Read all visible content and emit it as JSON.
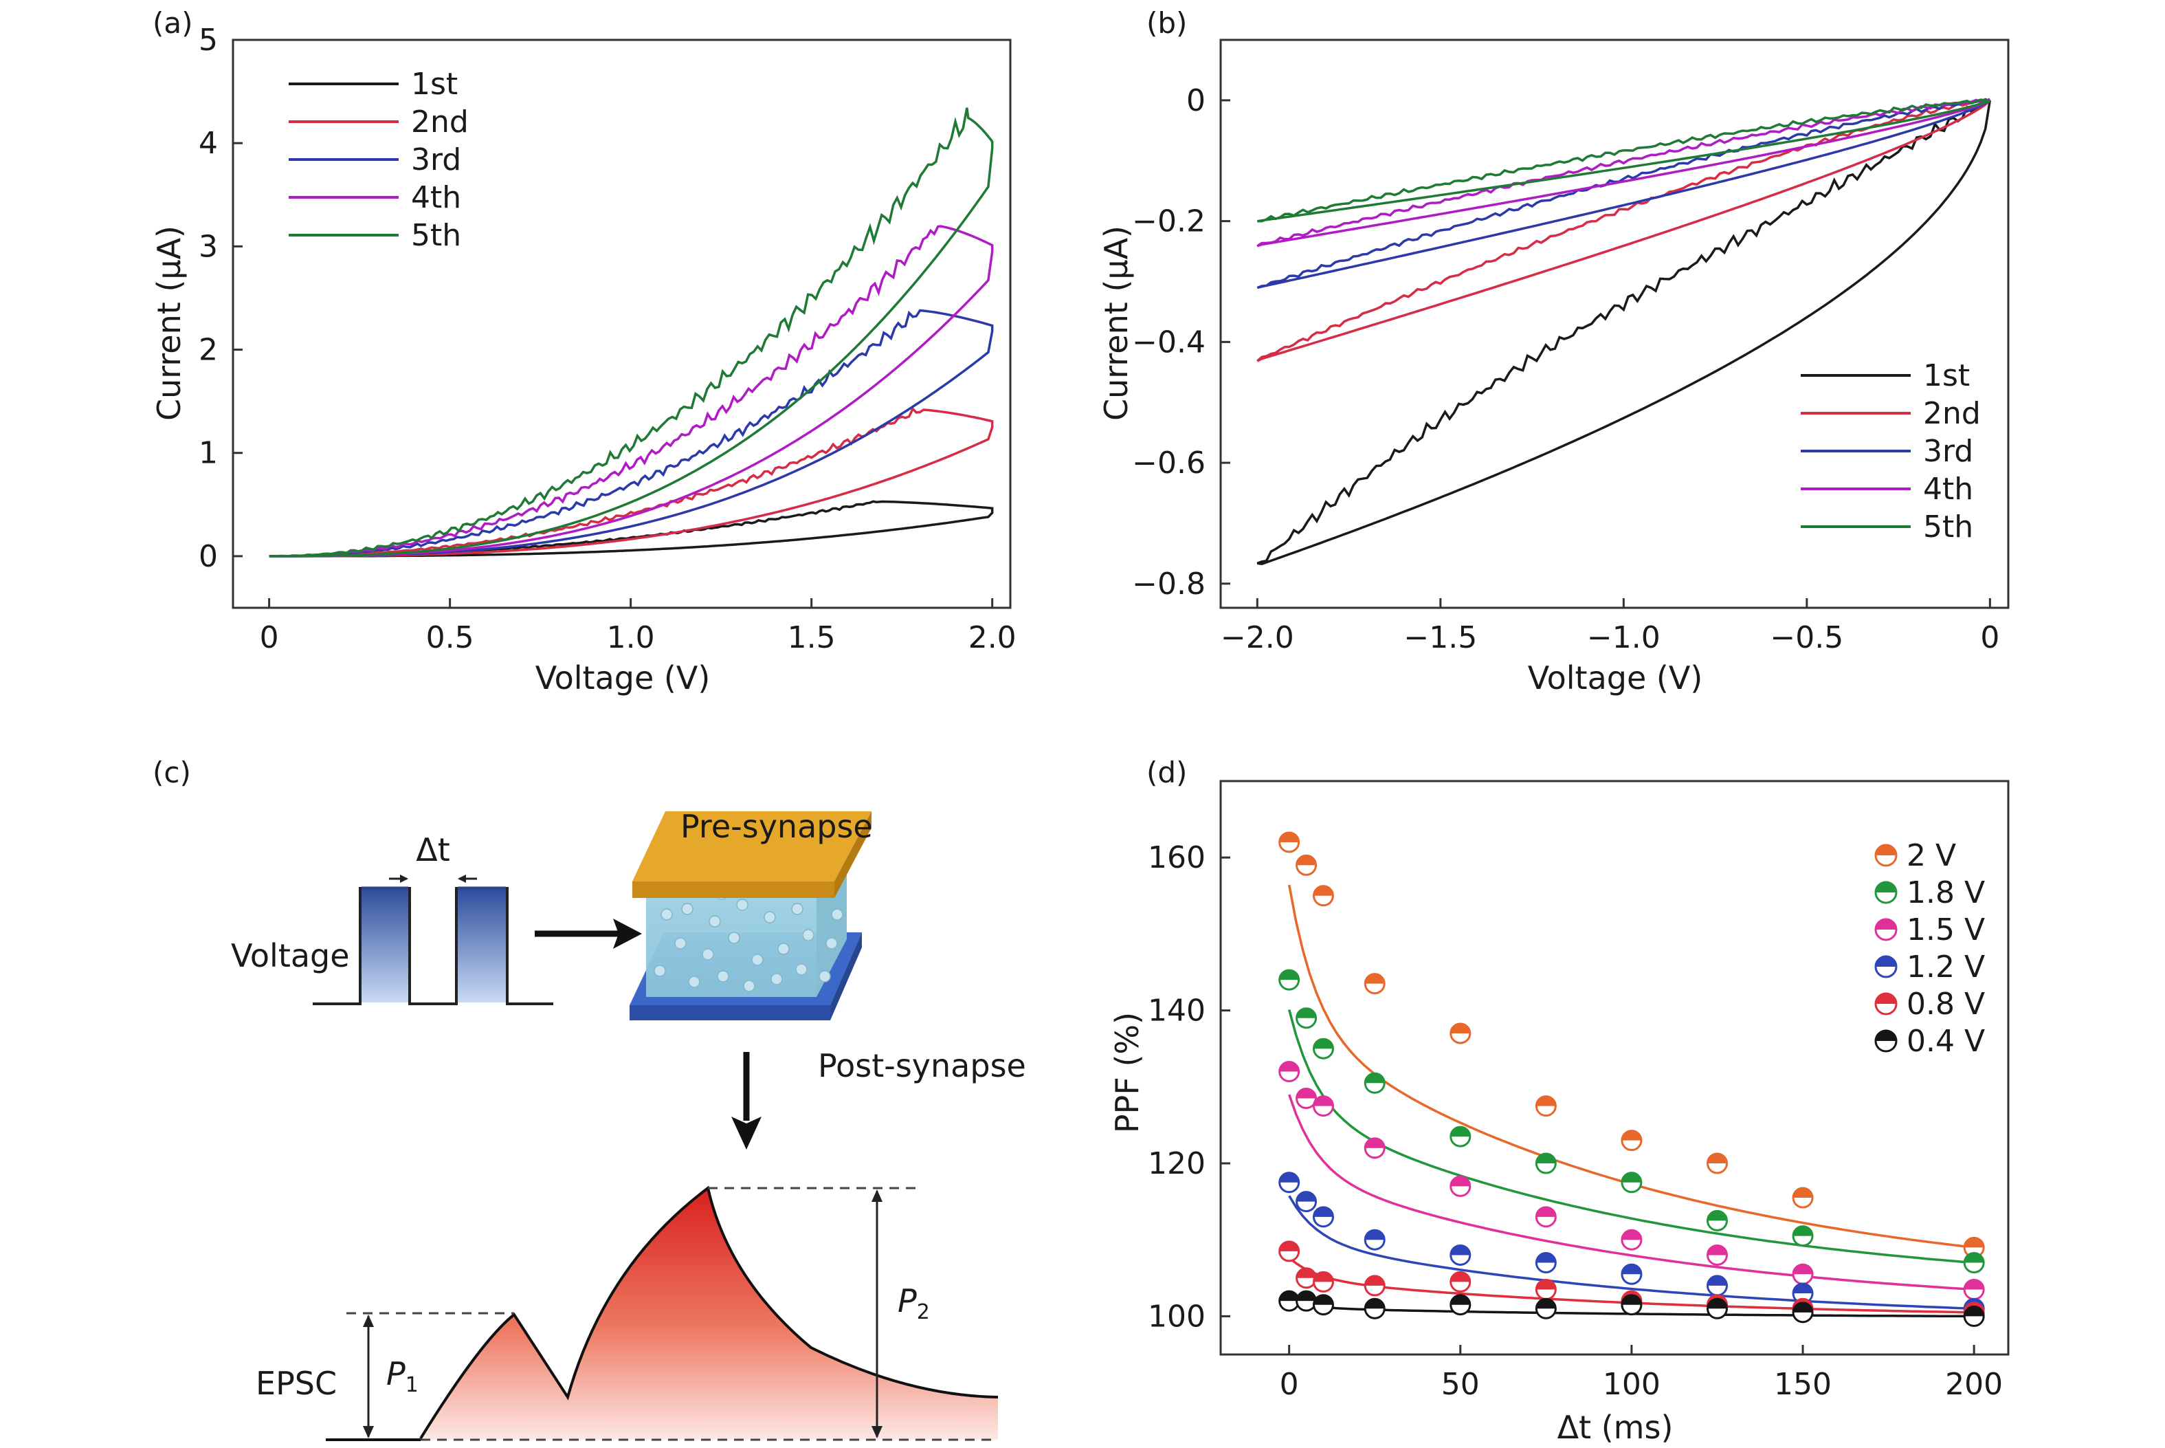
{
  "panel_labels": [
    "(a)",
    "(b)",
    "(c)",
    "(d)"
  ],
  "chart_data": [
    {
      "panel": "(a)",
      "type": "line",
      "xlabel": "Voltage (V)",
      "ylabel": "Current (µA)",
      "xlim": [
        -0.1,
        2.05
      ],
      "ylim": [
        -0.5,
        5
      ],
      "xticks": [
        0,
        0.5,
        1.0,
        1.5,
        2.0
      ],
      "xtick_labels": [
        "0",
        "0.5",
        "1.0",
        "1.5",
        "2.0"
      ],
      "yticks": [
        0,
        1,
        2,
        3,
        4,
        5
      ],
      "ytick_labels": [
        "0",
        "1",
        "2",
        "3",
        "4",
        "5"
      ],
      "legend_position": "top-left",
      "series": [
        {
          "name": "1st",
          "color": "#1a1a1a",
          "sweep_up_peak": [
            1.68,
            0.53
          ],
          "end": [
            2.0,
            0.42
          ]
        },
        {
          "name": "2nd",
          "color": "#d62c45",
          "sweep_up_peak": [
            1.8,
            1.42
          ],
          "end": [
            2.0,
            1.25
          ]
        },
        {
          "name": "3rd",
          "color": "#2b3aa8",
          "sweep_up_peak": [
            1.8,
            2.38
          ],
          "end": [
            2.0,
            2.18
          ]
        },
        {
          "name": "4th",
          "color": "#b01cc4",
          "sweep_up_peak": [
            1.85,
            3.2
          ],
          "end": [
            2.0,
            2.95
          ]
        },
        {
          "name": "5th",
          "color": "#1f7a36",
          "sweep_up_peak": [
            1.93,
            4.25
          ],
          "end": [
            2.0,
            3.95
          ]
        }
      ]
    },
    {
      "panel": "(b)",
      "type": "line",
      "xlabel": "Voltage (V)",
      "ylabel": "Current (µA)",
      "xlim": [
        -2.1,
        0.05
      ],
      "ylim": [
        -0.84,
        0.1
      ],
      "xticks": [
        -2.0,
        -1.5,
        -1.0,
        -0.5,
        0
      ],
      "xtick_labels": [
        "−2.0",
        "−1.5",
        "−1.0",
        "−0.5",
        "0"
      ],
      "yticks": [
        0,
        -0.2,
        -0.4,
        -0.6,
        -0.8
      ],
      "ytick_labels": [
        "0",
        "−0.2",
        "−0.4",
        "−0.6",
        "−0.8"
      ],
      "legend_position": "bottom-right",
      "series": [
        {
          "name": "1st",
          "color": "#1a1a1a",
          "min_current": -0.77
        },
        {
          "name": "2nd",
          "color": "#d62c45",
          "min_current": -0.43
        },
        {
          "name": "3rd",
          "color": "#2b3aa8",
          "min_current": -0.31
        },
        {
          "name": "4th",
          "color": "#b01cc4",
          "min_current": -0.24
        },
        {
          "name": "5th",
          "color": "#1f7a36",
          "min_current": -0.2
        }
      ]
    },
    {
      "panel": "(d)",
      "type": "scatter",
      "xlabel": "Δt (ms)",
      "ylabel": "PPF (%)",
      "xlim": [
        -20,
        210
      ],
      "ylim": [
        95,
        170
      ],
      "xticks": [
        0,
        50,
        100,
        150,
        200
      ],
      "xtick_labels": [
        "0",
        "50",
        "100",
        "150",
        "200"
      ],
      "yticks": [
        100,
        120,
        140,
        160
      ],
      "ytick_labels": [
        "100",
        "120",
        "140",
        "160"
      ],
      "legend_position": "top-right",
      "x": [
        0,
        5,
        10,
        25,
        50,
        75,
        100,
        125,
        150,
        200
      ],
      "series": [
        {
          "name": "2 V",
          "color": "#e8672a",
          "values": [
            162,
            159,
            155,
            143.5,
            137,
            127.5,
            123,
            120,
            115.5,
            109
          ]
        },
        {
          "name": "1.8 V",
          "color": "#22963a",
          "values": [
            144,
            139,
            135,
            130.5,
            123.5,
            120,
            117.5,
            112.5,
            110.5,
            107
          ]
        },
        {
          "name": "1.5 V",
          "color": "#e0309a",
          "values": [
            132,
            128.5,
            127.5,
            122,
            117,
            113,
            110,
            108,
            105.5,
            103.5
          ]
        },
        {
          "name": "1.2 V",
          "color": "#2e45b8",
          "values": [
            117.5,
            115,
            113,
            110,
            108,
            107,
            105.5,
            104,
            103,
            101
          ]
        },
        {
          "name": "0.8 V",
          "color": "#e02e3c",
          "values": [
            108.5,
            105,
            104.5,
            104,
            104.5,
            103.5,
            102,
            101.5,
            101,
            100.5
          ]
        },
        {
          "name": "0.4 V",
          "color": "#151515",
          "values": [
            102,
            102,
            101.5,
            101,
            101.5,
            101,
            101.5,
            101,
            100.5,
            100
          ]
        }
      ]
    }
  ],
  "diagram_c": {
    "pulse_label": "Voltage",
    "delta_label": "Δt",
    "top_electrode_label": "Pre-synapse",
    "bottom_electrode_label": "Post-synapse",
    "response_label": "EPSC",
    "p1_label": "P",
    "p1_sub": "1",
    "p2_label": "P",
    "p2_sub": "2",
    "colors": {
      "pulse": "#3a5fb0",
      "top_electrode": "#e6a82a",
      "bottom_electrode": "#3b68c9",
      "electrolyte": "#9fd0e3",
      "epsc": "#e0302a"
    }
  }
}
